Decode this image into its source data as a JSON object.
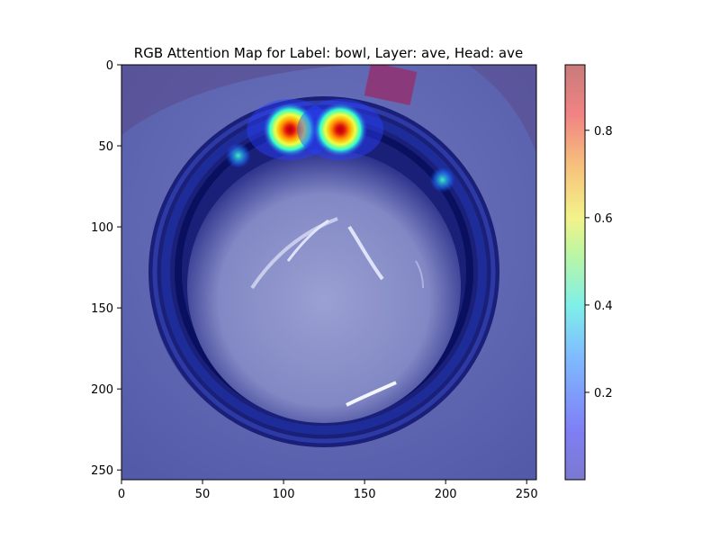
{
  "chart_data": {
    "type": "heatmap",
    "title": "RGB Attention Map for Label: bowl, Layer: ave, Head: ave",
    "xlabel": "",
    "ylabel": "",
    "xlim": [
      0,
      256
    ],
    "ylim": [
      256,
      0
    ],
    "x_ticks": [
      0,
      50,
      100,
      150,
      200,
      250
    ],
    "y_ticks": [
      0,
      50,
      100,
      150,
      200,
      250
    ],
    "colorbar": {
      "colormap": "jet",
      "alpha": 0.5,
      "range": [
        0.0,
        0.95
      ],
      "ticks": [
        0.2,
        0.4,
        0.6,
        0.8
      ]
    },
    "hotspots": [
      {
        "x": 104,
        "y": 40,
        "value": 0.95
      },
      {
        "x": 135,
        "y": 40,
        "value": 0.93
      },
      {
        "x": 72,
        "y": 56,
        "value": 0.35
      },
      {
        "x": 198,
        "y": 71,
        "value": 0.32
      }
    ],
    "background_scene": {
      "object": "bowl",
      "center": [
        122,
        143
      ],
      "rim_radius": 108
    }
  }
}
